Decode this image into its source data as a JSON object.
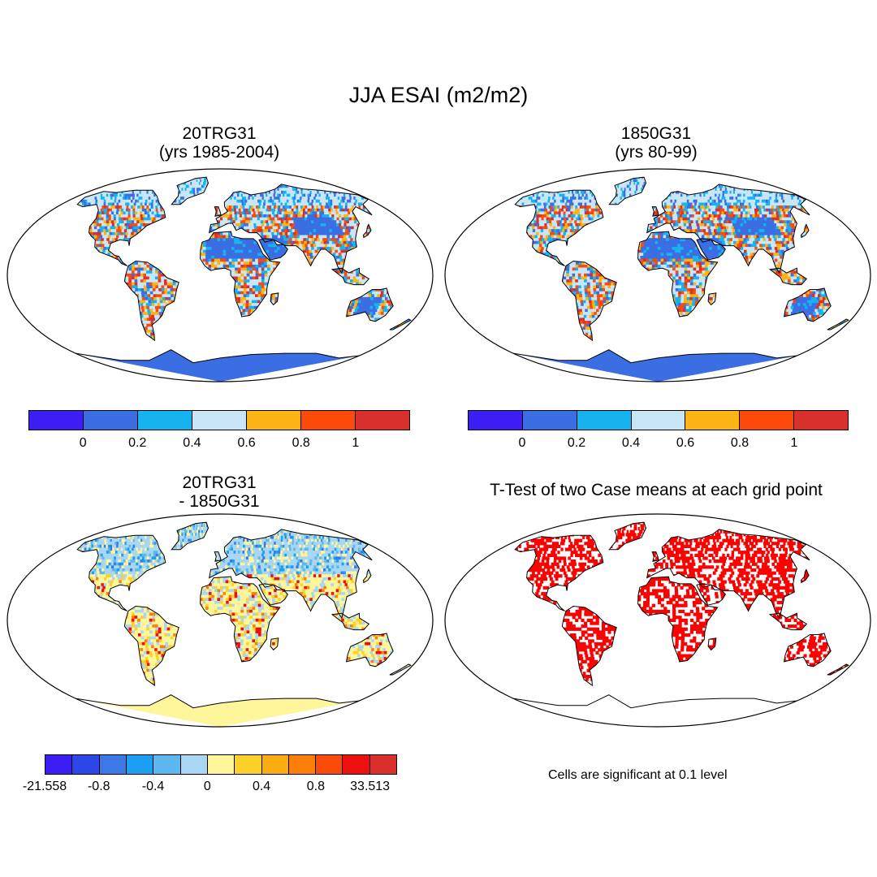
{
  "figure": {
    "title": "JJA ESAI (m2/m2)"
  },
  "panels": [
    {
      "title_line1": "20TRG31",
      "title_line2": "(yrs 1985-2004)",
      "field": "absolute",
      "ocean_fill": "#ffffff",
      "palette": [
        "#3d1ff5",
        "#3b6ee3",
        "#17b3f0",
        "#c8e6f5",
        "#fbb316",
        "#fb4a0a",
        "#d9302c"
      ]
    },
    {
      "title_line1": "1850G31",
      "title_line2": "(yrs 80-99)",
      "field": "absolute",
      "ocean_fill": "#ffffff",
      "palette": [
        "#3d1ff5",
        "#3b6ee3",
        "#17b3f0",
        "#c8e6f5",
        "#fbb316",
        "#fb4a0a",
        "#d9302c"
      ]
    },
    {
      "title_line1": "20TRG31",
      "title_line2": "- 1850G31",
      "field": "difference",
      "ocean_fill": "#ffffff"
    },
    {
      "title_line1": "T-Test of two Case means at each grid point",
      "title_line2": "",
      "field": "significance",
      "ocean_fill": "#ffffff",
      "signif_color": "#ff0000"
    }
  ],
  "colorbars": {
    "abs1": {
      "colors": [
        "#3d1ff5",
        "#3b6ee3",
        "#17b3f0",
        "#c8e6f5",
        "#fbb316",
        "#fb4a0a",
        "#d9302c"
      ],
      "labels": [
        "0",
        "0.2",
        "0.4",
        "0.6",
        "0.8",
        "1"
      ]
    },
    "abs2": {
      "colors": [
        "#3d1ff5",
        "#3b6ee3",
        "#17b3f0",
        "#c8e6f5",
        "#fbb316",
        "#fb4a0a",
        "#d9302c"
      ],
      "labels": [
        "0",
        "0.2",
        "0.4",
        "0.6",
        "0.8",
        "1"
      ]
    },
    "diff": {
      "colors": [
        "#3d1ff5",
        "#2c46e8",
        "#3b78e6",
        "#1c9ef2",
        "#5cb8ee",
        "#a9d6f2",
        "#fff59a",
        "#fdd12a",
        "#fbac10",
        "#fb7f0a",
        "#fb4a0a",
        "#ee1010",
        "#d9302c"
      ],
      "labels": [
        "-21.558",
        "-0.8",
        "-0.4",
        "0",
        "0.4",
        "0.8",
        "33.513"
      ]
    }
  },
  "significance_note": "Cells are significant at 0.1 level"
}
